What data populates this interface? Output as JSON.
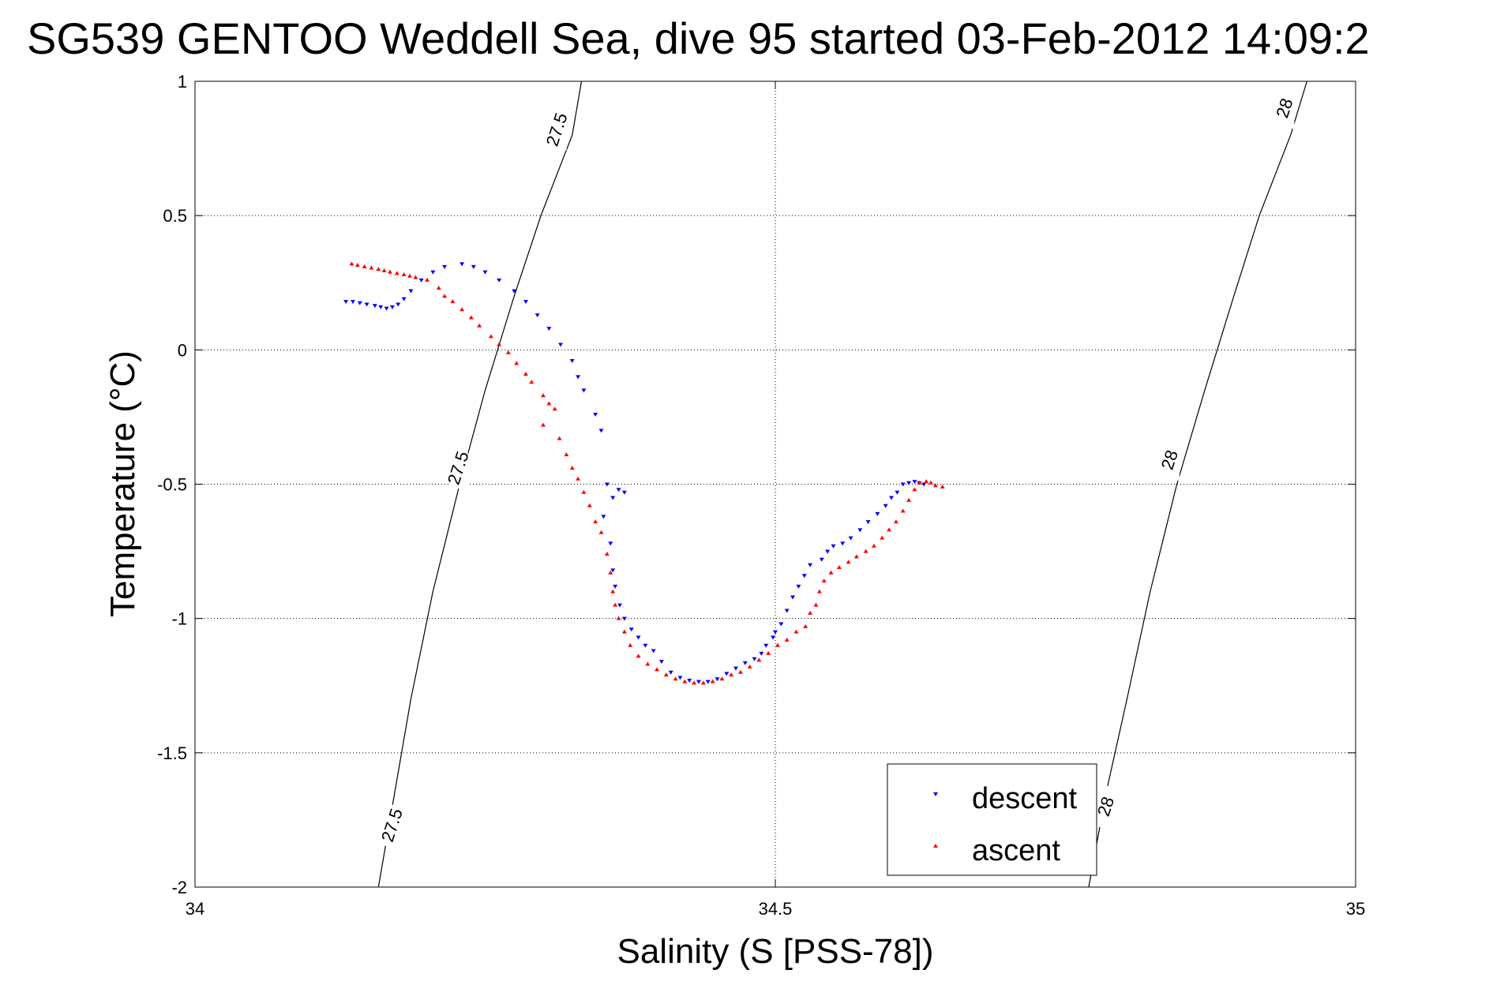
{
  "title": "SG539 GENTOO Weddell Sea, dive 95 started 03-Feb-2012 14:09:2",
  "chart_data": {
    "type": "scatter",
    "title": "SG539 GENTOO Weddell Sea, dive 95 started 03-Feb-2012 14:09:2",
    "xlabel": "Salinity (S [PSS-78])",
    "ylabel": "Temperature (°C)",
    "xlim": [
      34,
      35
    ],
    "ylim": [
      -2,
      1
    ],
    "xticks": [
      "34",
      "34.5",
      "35"
    ],
    "yticks": [
      "-2",
      "-1.5",
      "-1",
      "-0.5",
      "0",
      "0.5",
      "1"
    ],
    "grid": true,
    "legend_position": "bottom-right",
    "density_contours": [
      {
        "label": "27.5",
        "points": [
          [
            34.158,
            -2.0
          ],
          [
            34.172,
            -1.65
          ],
          [
            34.186,
            -1.3
          ],
          [
            34.205,
            -0.9
          ],
          [
            34.228,
            -0.5
          ],
          [
            34.25,
            -0.15
          ],
          [
            34.275,
            0.2
          ],
          [
            34.298,
            0.5
          ],
          [
            34.325,
            0.8
          ],
          [
            34.333,
            1.0
          ]
        ]
      },
      {
        "label": "28",
        "points": [
          [
            34.77,
            -2.0
          ],
          [
            34.785,
            -1.65
          ],
          [
            34.803,
            -1.3
          ],
          [
            34.823,
            -0.9
          ],
          [
            34.846,
            -0.5
          ],
          [
            34.87,
            -0.15
          ],
          [
            34.895,
            0.2
          ],
          [
            34.917,
            0.5
          ],
          [
            34.944,
            0.8
          ],
          [
            34.958,
            1.0
          ]
        ]
      }
    ],
    "contour_labels": [
      {
        "text": "27.5",
        "at": [
          34.312,
          0.82
        ]
      },
      {
        "text": "27.5",
        "at": [
          34.227,
          -0.44
        ]
      },
      {
        "text": "27.5",
        "at": [
          34.17,
          -1.77
        ]
      },
      {
        "text": "28",
        "at": [
          34.939,
          0.9
        ]
      },
      {
        "text": "28",
        "at": [
          34.84,
          -0.41
        ]
      },
      {
        "text": "28",
        "at": [
          34.785,
          -1.7
        ]
      }
    ],
    "series": [
      {
        "name": "descent",
        "color": "#0000ff",
        "marker": "triangle-down",
        "points": [
          [
            34.13,
            0.18
          ],
          [
            34.136,
            0.18
          ],
          [
            34.142,
            0.175
          ],
          [
            34.148,
            0.17
          ],
          [
            34.155,
            0.165
          ],
          [
            34.16,
            0.16
          ],
          [
            34.165,
            0.155
          ],
          [
            34.17,
            0.16
          ],
          [
            34.175,
            0.17
          ],
          [
            34.18,
            0.19
          ],
          [
            34.186,
            0.22
          ],
          [
            34.195,
            0.26
          ],
          [
            34.205,
            0.29
          ],
          [
            34.215,
            0.31
          ],
          [
            34.23,
            0.32
          ],
          [
            34.24,
            0.31
          ],
          [
            34.25,
            0.29
          ],
          [
            34.262,
            0.26
          ],
          [
            34.275,
            0.22
          ],
          [
            34.285,
            0.18
          ],
          [
            34.295,
            0.13
          ],
          [
            34.305,
            0.08
          ],
          [
            34.315,
            0.02
          ],
          [
            34.325,
            -0.04
          ],
          [
            34.33,
            -0.1
          ],
          [
            34.335,
            -0.15
          ],
          [
            34.345,
            -0.24
          ],
          [
            34.35,
            -0.3
          ],
          [
            34.355,
            -0.5
          ],
          [
            34.36,
            -0.55
          ],
          [
            34.365,
            -0.52
          ],
          [
            34.37,
            -0.53
          ],
          [
            34.352,
            -0.62
          ],
          [
            34.358,
            -0.72
          ],
          [
            34.36,
            -0.82
          ],
          [
            34.362,
            -0.88
          ],
          [
            34.366,
            -0.95
          ],
          [
            34.37,
            -1.0
          ],
          [
            34.376,
            -1.04
          ],
          [
            34.382,
            -1.07
          ],
          [
            34.388,
            -1.1
          ],
          [
            34.395,
            -1.12
          ],
          [
            34.402,
            -1.16
          ],
          [
            34.41,
            -1.2
          ],
          [
            34.418,
            -1.22
          ],
          [
            34.426,
            -1.23
          ],
          [
            34.434,
            -1.235
          ],
          [
            34.442,
            -1.235
          ],
          [
            34.45,
            -1.225
          ],
          [
            34.458,
            -1.205
          ],
          [
            34.466,
            -1.185
          ],
          [
            34.474,
            -1.165
          ],
          [
            34.482,
            -1.15
          ],
          [
            34.488,
            -1.13
          ],
          [
            34.492,
            -1.1
          ],
          [
            34.498,
            -1.07
          ],
          [
            34.5,
            -1.05
          ],
          [
            34.505,
            -1.02
          ],
          [
            34.51,
            -0.97
          ],
          [
            34.515,
            -0.92
          ],
          [
            34.52,
            -0.88
          ],
          [
            34.525,
            -0.84
          ],
          [
            34.53,
            -0.8
          ],
          [
            34.54,
            -0.78
          ],
          [
            34.545,
            -0.75
          ],
          [
            34.55,
            -0.73
          ],
          [
            34.558,
            -0.72
          ],
          [
            34.565,
            -0.7
          ],
          [
            34.573,
            -0.67
          ],
          [
            34.58,
            -0.64
          ],
          [
            34.588,
            -0.61
          ],
          [
            34.595,
            -0.58
          ],
          [
            34.6,
            -0.55
          ],
          [
            34.605,
            -0.53
          ],
          [
            34.61,
            -0.5
          ],
          [
            34.615,
            -0.495
          ],
          [
            34.62,
            -0.49
          ],
          [
            34.624,
            -0.495
          ],
          [
            34.628,
            -0.5
          ]
        ]
      },
      {
        "name": "ascent",
        "color": "#ff0000",
        "marker": "triangle-up",
        "points": [
          [
            34.135,
            0.32
          ],
          [
            34.14,
            0.315
          ],
          [
            34.146,
            0.31
          ],
          [
            34.152,
            0.305
          ],
          [
            34.158,
            0.3
          ],
          [
            34.163,
            0.295
          ],
          [
            34.168,
            0.29
          ],
          [
            34.174,
            0.285
          ],
          [
            34.18,
            0.28
          ],
          [
            34.185,
            0.275
          ],
          [
            34.19,
            0.27
          ],
          [
            34.2,
            0.26
          ],
          [
            34.21,
            0.23
          ],
          [
            34.215,
            0.2
          ],
          [
            34.222,
            0.18
          ],
          [
            34.23,
            0.15
          ],
          [
            34.238,
            0.12
          ],
          [
            34.245,
            0.09
          ],
          [
            34.255,
            0.05
          ],
          [
            34.262,
            0.02
          ],
          [
            34.27,
            -0.01
          ],
          [
            34.277,
            -0.05
          ],
          [
            34.285,
            -0.09
          ],
          [
            34.29,
            -0.12
          ],
          [
            34.3,
            -0.17
          ],
          [
            34.305,
            -0.2
          ],
          [
            34.31,
            -0.22
          ],
          [
            34.3,
            -0.28
          ],
          [
            34.314,
            -0.33
          ],
          [
            34.32,
            -0.39
          ],
          [
            34.325,
            -0.44
          ],
          [
            34.33,
            -0.48
          ],
          [
            34.335,
            -0.53
          ],
          [
            34.34,
            -0.58
          ],
          [
            34.345,
            -0.64
          ],
          [
            34.35,
            -0.68
          ],
          [
            34.355,
            -0.76
          ],
          [
            34.358,
            -0.83
          ],
          [
            34.36,
            -0.9
          ],
          [
            34.362,
            -0.95
          ],
          [
            34.365,
            -1.0
          ],
          [
            34.37,
            -1.05
          ],
          [
            34.375,
            -1.1
          ],
          [
            34.382,
            -1.14
          ],
          [
            34.39,
            -1.17
          ],
          [
            34.398,
            -1.19
          ],
          [
            34.406,
            -1.21
          ],
          [
            34.414,
            -1.225
          ],
          [
            34.422,
            -1.235
          ],
          [
            34.43,
            -1.24
          ],
          [
            34.438,
            -1.24
          ],
          [
            34.446,
            -1.235
          ],
          [
            34.454,
            -1.225
          ],
          [
            34.462,
            -1.21
          ],
          [
            34.47,
            -1.2
          ],
          [
            34.478,
            -1.18
          ],
          [
            34.486,
            -1.155
          ],
          [
            34.494,
            -1.13
          ],
          [
            34.502,
            -1.1
          ],
          [
            34.51,
            -1.08
          ],
          [
            34.518,
            -1.05
          ],
          [
            34.526,
            -1.03
          ],
          [
            34.53,
            -0.98
          ],
          [
            34.535,
            -0.95
          ],
          [
            34.538,
            -0.9
          ],
          [
            34.542,
            -0.86
          ],
          [
            34.548,
            -0.83
          ],
          [
            34.555,
            -0.81
          ],
          [
            34.563,
            -0.79
          ],
          [
            34.57,
            -0.77
          ],
          [
            34.578,
            -0.75
          ],
          [
            34.585,
            -0.73
          ],
          [
            34.592,
            -0.7
          ],
          [
            34.598,
            -0.67
          ],
          [
            34.604,
            -0.64
          ],
          [
            34.61,
            -0.6
          ],
          [
            34.615,
            -0.56
          ],
          [
            34.62,
            -0.52
          ],
          [
            34.624,
            -0.495
          ],
          [
            34.63,
            -0.49
          ],
          [
            34.634,
            -0.495
          ],
          [
            34.638,
            -0.505
          ],
          [
            34.644,
            -0.51
          ]
        ]
      }
    ]
  }
}
